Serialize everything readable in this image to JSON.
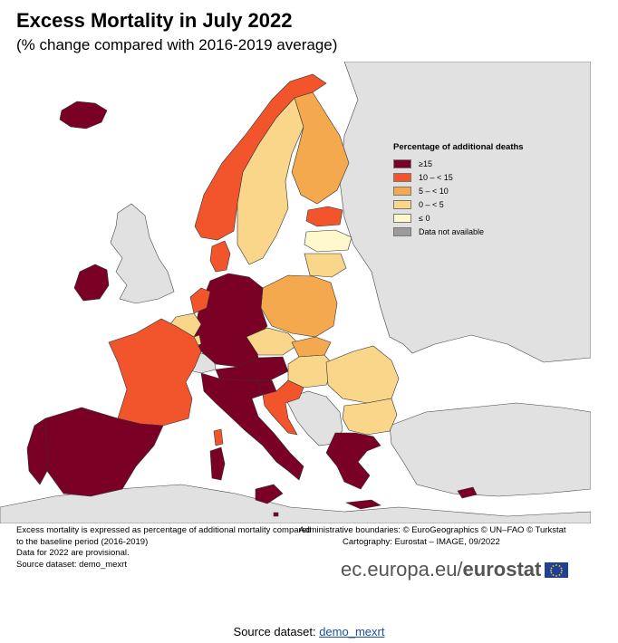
{
  "title": "Excess Mortality in July 2022",
  "subtitle": "(% change compared with 2016-2019 average)",
  "legend": {
    "title": "Percentage of additional deaths",
    "items": [
      {
        "label": "≥15",
        "color": "#7a0025"
      },
      {
        "label": "10 – < 15",
        "color": "#f2552c"
      },
      {
        "label": "5 – < 10",
        "color": "#f5a94e"
      },
      {
        "label": "0 – < 5",
        "color": "#f9d68a"
      },
      {
        "label": "≤ 0",
        "color": "#fff8cc"
      },
      {
        "label": "Data not available",
        "color": "#9b9b9b"
      }
    ]
  },
  "colors": {
    "sea": "#ffffff",
    "non_eu_land": "#e1e1e1",
    "border": "#333333"
  },
  "notes": [
    "Excess mortality is expressed as percentage of additional mortality compared",
    "to the baseline period (2016-2019)",
    "Data for 2022 are provisional.",
    "Source dataset: demo_mexrt"
  ],
  "credits": [
    "Administrative boundaries: © EuroGeographics © UN–FAO © Turkstat",
    "Cartography: Eurostat – IMAGE, 09/2022"
  ],
  "brand": {
    "prefix": "ec.europa.eu/",
    "name": "eurostat"
  },
  "source": {
    "label": "Source dataset: ",
    "link_text": "demo_mexrt"
  }
}
